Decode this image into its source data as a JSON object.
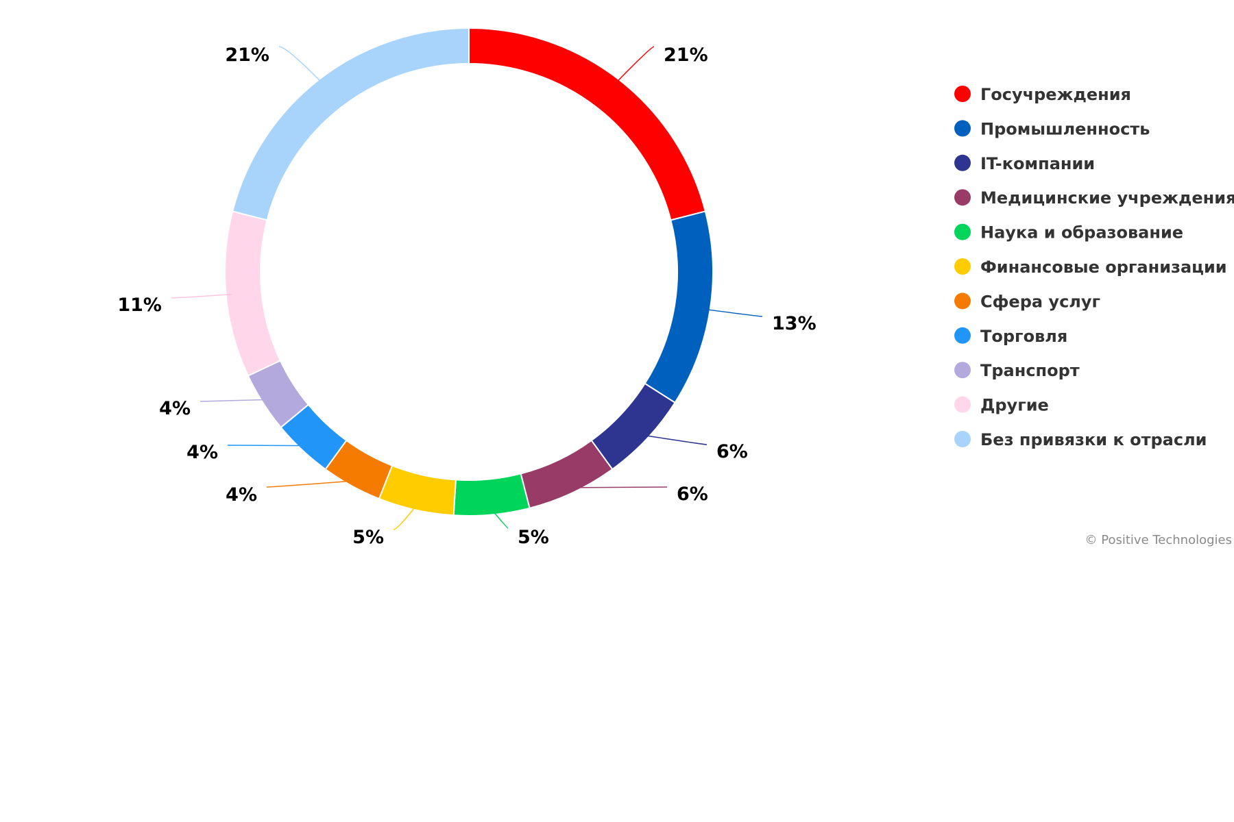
{
  "chart_data": {
    "type": "pie",
    "style": "donut",
    "legend_placement": "right",
    "slices": [
      {
        "name": "Госучреждения",
        "value": 21,
        "label": "21%",
        "color": "#ff0000"
      },
      {
        "name": "Промышленность",
        "value": 13,
        "label": "13%",
        "color": "#0060bd"
      },
      {
        "name": "IT-компании",
        "value": 6,
        "label": "6%",
        "color": "#2e3590"
      },
      {
        "name": "Медицинские учреждения",
        "value": 6,
        "label": "6%",
        "color": "#983b66"
      },
      {
        "name": "Наука и образование",
        "value": 5,
        "label": "5%",
        "color": "#00d45a"
      },
      {
        "name": "Финансовые организации",
        "value": 5,
        "label": "5%",
        "color": "#ffcc00"
      },
      {
        "name": "Сфера услуг",
        "value": 4,
        "label": "4%",
        "color": "#f47b00"
      },
      {
        "name": "Торговля",
        "value": 4,
        "label": "4%",
        "color": "#2196f8"
      },
      {
        "name": "Транспорт",
        "value": 4,
        "label": "4%",
        "color": "#b3a9dd"
      },
      {
        "name": "Другие",
        "value": 11,
        "label": "11%",
        "color": "#ffd6ea"
      },
      {
        "name": "Без привязки к отрасли",
        "value": 21,
        "label": "21%",
        "color": "#a8d4fc"
      }
    ]
  },
  "credit": "© Positive Technologies"
}
